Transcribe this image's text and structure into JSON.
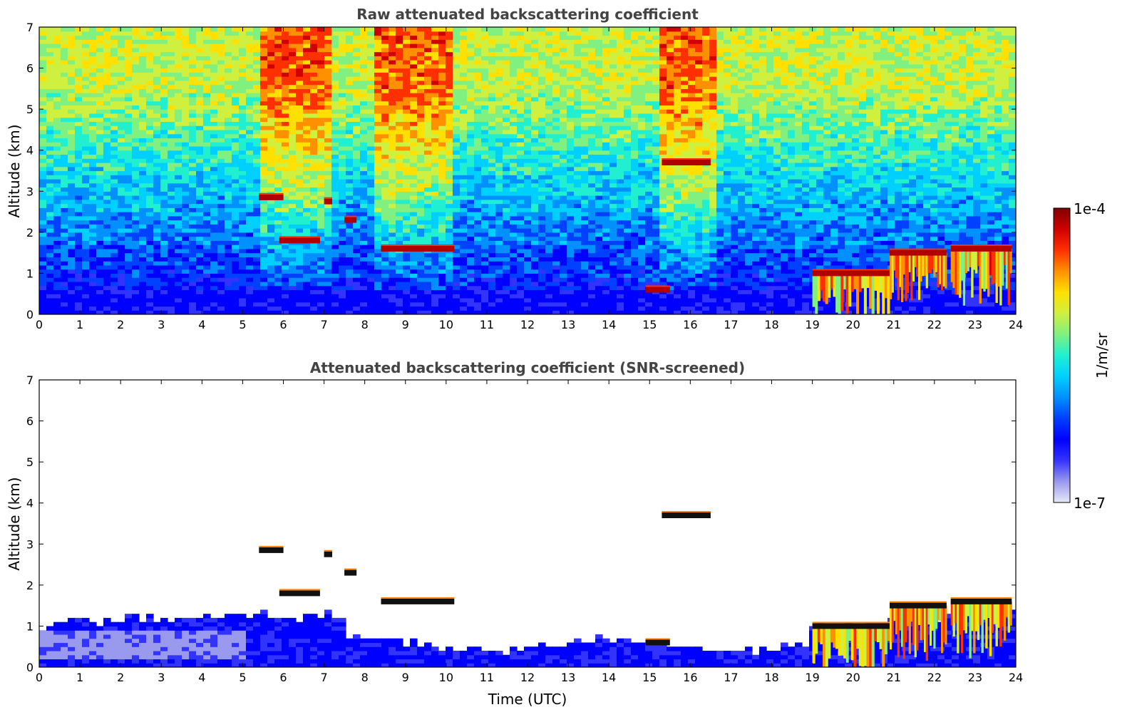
{
  "chart_data": [
    {
      "type": "heatmap",
      "title": "Raw attenuated backscattering coefficient",
      "xlabel": "",
      "ylabel": "Altitude (km)",
      "xlim": [
        0,
        24
      ],
      "ylim": [
        0,
        7
      ],
      "x_ticks": [
        "0",
        "1",
        "2",
        "3",
        "4",
        "5",
        "6",
        "7",
        "8",
        "9",
        "10",
        "11",
        "12",
        "13",
        "14",
        "15",
        "16",
        "17",
        "18",
        "19",
        "20",
        "21",
        "22",
        "23",
        "24"
      ],
      "y_ticks": [
        "0",
        "1",
        "2",
        "3",
        "4",
        "5",
        "6",
        "7"
      ],
      "screened": false,
      "features": [
        {
          "kind": "cloud",
          "x": [
            5.4,
            6.0
          ],
          "y": 2.85
        },
        {
          "kind": "cloud",
          "x": [
            5.9,
            6.9
          ],
          "y": 1.8
        },
        {
          "kind": "cloud",
          "x": [
            7.0,
            7.2
          ],
          "y": 2.75
        },
        {
          "kind": "cloud",
          "x": [
            7.5,
            7.8
          ],
          "y": 2.3
        },
        {
          "kind": "cloud",
          "x": [
            8.4,
            10.2
          ],
          "y": 1.6
        },
        {
          "kind": "cloud",
          "x": [
            15.3,
            16.5
          ],
          "y": 3.7
        },
        {
          "kind": "cloud",
          "x": [
            14.9,
            15.5
          ],
          "y": 0.6
        },
        {
          "kind": "cloud",
          "x": [
            19.0,
            20.9
          ],
          "y": 1.0
        },
        {
          "kind": "cloud",
          "x": [
            20.9,
            22.3
          ],
          "y": 1.5
        },
        {
          "kind": "cloud",
          "x": [
            22.4,
            23.9
          ],
          "y": 1.6
        }
      ]
    },
    {
      "type": "heatmap",
      "title": "Attenuated backscattering coefficient (SNR-screened)",
      "xlabel": "Time (UTC)",
      "ylabel": "Altitude (km)",
      "xlim": [
        0,
        24
      ],
      "ylim": [
        0,
        7
      ],
      "x_ticks": [
        "0",
        "1",
        "2",
        "3",
        "4",
        "5",
        "6",
        "7",
        "8",
        "9",
        "10",
        "11",
        "12",
        "13",
        "14",
        "15",
        "16",
        "17",
        "18",
        "19",
        "20",
        "21",
        "22",
        "23",
        "24"
      ],
      "y_ticks": [
        "0",
        "1",
        "2",
        "3",
        "4",
        "5",
        "6",
        "7"
      ],
      "screened": true,
      "features": [
        {
          "kind": "cloud",
          "x": [
            5.4,
            6.0
          ],
          "y": 2.85
        },
        {
          "kind": "cloud",
          "x": [
            5.9,
            6.9
          ],
          "y": 1.8
        },
        {
          "kind": "cloud",
          "x": [
            7.0,
            7.2
          ],
          "y": 2.75
        },
        {
          "kind": "cloud",
          "x": [
            7.5,
            7.8
          ],
          "y": 2.3
        },
        {
          "kind": "cloud",
          "x": [
            8.4,
            10.2
          ],
          "y": 1.6
        },
        {
          "kind": "cloud",
          "x": [
            15.3,
            16.5
          ],
          "y": 3.7
        },
        {
          "kind": "cloud",
          "x": [
            14.9,
            15.5
          ],
          "y": 0.6
        },
        {
          "kind": "cloud",
          "x": [
            19.0,
            20.9
          ],
          "y": 1.0
        },
        {
          "kind": "cloud",
          "x": [
            20.9,
            22.3
          ],
          "y": 1.5
        },
        {
          "kind": "cloud",
          "x": [
            22.4,
            23.9
          ],
          "y": 1.6
        }
      ]
    }
  ],
  "colorbar": {
    "max_label": "1e-4",
    "min_label": "1e-7",
    "unit": "1/m/sr",
    "colormap": [
      "#e8e8f8",
      "#9999ee",
      "#3333ff",
      "#0000ff",
      "#0040ff",
      "#0090ff",
      "#00d0ff",
      "#20f0d0",
      "#80f080",
      "#d0f040",
      "#ffe000",
      "#ff9000",
      "#ff3000",
      "#d00000",
      "#800000"
    ]
  }
}
